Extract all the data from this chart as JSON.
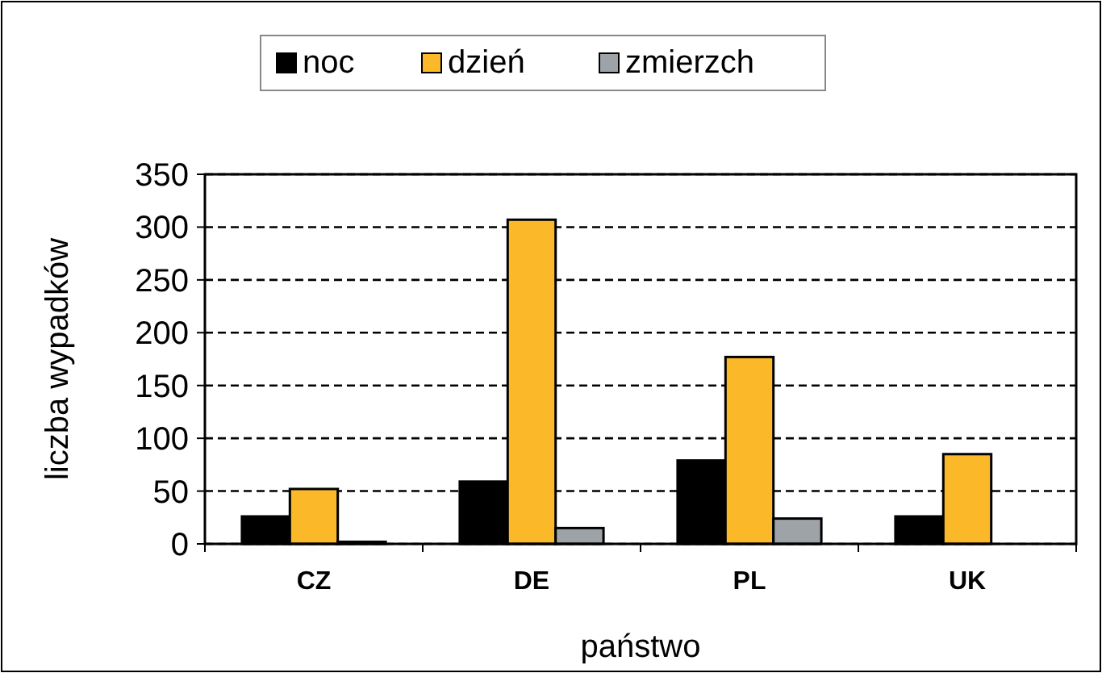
{
  "chart_data": {
    "type": "bar",
    "xlabel": "państwo",
    "ylabel": "liczba wypadków",
    "categories": [
      "CZ",
      "DE",
      "PL",
      "UK"
    ],
    "series": [
      {
        "name": "noc",
        "color": "#000000",
        "values": [
          26,
          59,
          79,
          26
        ]
      },
      {
        "name": "dzień",
        "color": "#fbb829",
        "values": [
          52,
          307,
          177,
          85
        ]
      },
      {
        "name": "zmierzch",
        "color": "#9ea3a8",
        "values": [
          2,
          15,
          24,
          0
        ]
      }
    ],
    "ylim": [
      0,
      350
    ],
    "yticks": [
      0,
      50,
      100,
      150,
      200,
      250,
      300,
      350
    ],
    "grid": "y",
    "legend": "top"
  }
}
